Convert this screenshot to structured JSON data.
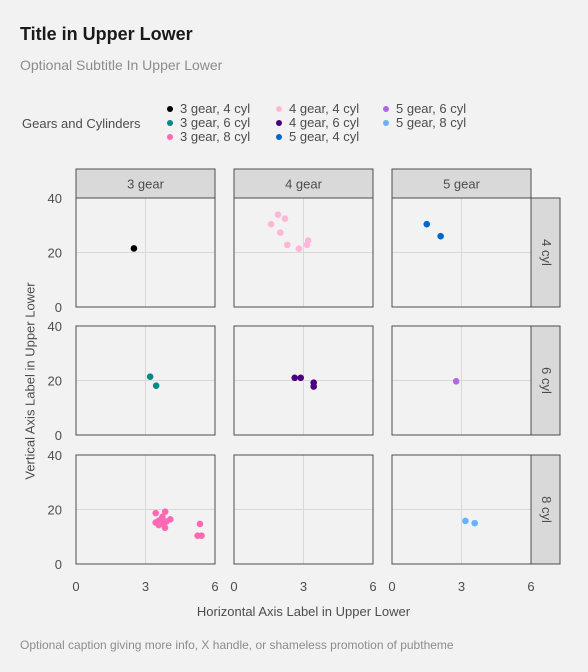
{
  "title": "Title in Upper Lower",
  "subtitle": "Optional Subtitle In Upper Lower",
  "caption": "Optional caption giving more info, X handle, or shameless promotion of pubtheme",
  "legend": {
    "title": "Gears and Cylinders",
    "items": [
      {
        "label": "3 gear, 4 cyl",
        "color": "#000000"
      },
      {
        "label": "3 gear, 6 cyl",
        "color": "#008b8b"
      },
      {
        "label": "3 gear, 8 cyl",
        "color": "#ff69b4"
      },
      {
        "label": "4 gear, 4 cyl",
        "color": "#ffb6d9"
      },
      {
        "label": "4 gear, 6 cyl",
        "color": "#4b0082"
      },
      {
        "label": "5 gear, 4 cyl",
        "color": "#0066cc"
      },
      {
        "label": "5 gear, 6 cyl",
        "color": "#b266e6"
      },
      {
        "label": "5 gear, 8 cyl",
        "color": "#66b2ff"
      }
    ]
  },
  "chart_data": {
    "type": "scatter",
    "xlabel": "Horizontal Axis Label in Upper Lower",
    "ylabel": "Vertical Axis Label in Upper Lower",
    "xlim": [
      0,
      6
    ],
    "ylim": [
      0,
      40
    ],
    "xticks": [
      0,
      3,
      6
    ],
    "yticks": [
      0,
      20,
      40
    ],
    "grid": true,
    "legend_position": "top",
    "facet_cols": [
      "3 gear",
      "4 gear",
      "5 gear"
    ],
    "facet_rows": [
      "4 cyl",
      "6 cyl",
      "8 cyl"
    ],
    "panels": [
      {
        "col": "3 gear",
        "row": "4 cyl",
        "series": "3 gear, 4 cyl",
        "points": [
          [
            2.5,
            21.5
          ]
        ]
      },
      {
        "col": "4 gear",
        "row": "4 cyl",
        "series": "4 gear, 4 cyl",
        "points": [
          [
            1.6,
            30.4
          ],
          [
            1.9,
            33.9
          ],
          [
            2.0,
            27.3
          ],
          [
            2.2,
            32.4
          ],
          [
            2.3,
            22.8
          ],
          [
            2.8,
            21.4
          ],
          [
            3.15,
            22.8
          ],
          [
            3.2,
            24.4
          ]
        ]
      },
      {
        "col": "5 gear",
        "row": "4 cyl",
        "series": "5 gear, 4 cyl",
        "points": [
          [
            1.5,
            30.4
          ],
          [
            2.1,
            26.0
          ]
        ]
      },
      {
        "col": "3 gear",
        "row": "6 cyl",
        "series": "3 gear, 6 cyl",
        "points": [
          [
            3.2,
            21.4
          ],
          [
            3.46,
            18.1
          ]
        ]
      },
      {
        "col": "4 gear",
        "row": "6 cyl",
        "series": "4 gear, 6 cyl",
        "points": [
          [
            2.62,
            21.0
          ],
          [
            2.88,
            21.0
          ],
          [
            3.44,
            19.2
          ],
          [
            3.44,
            17.8
          ]
        ]
      },
      {
        "col": "5 gear",
        "row": "6 cyl",
        "series": "5 gear, 6 cyl",
        "points": [
          [
            2.77,
            19.7
          ]
        ]
      },
      {
        "col": "3 gear",
        "row": "8 cyl",
        "series": "3 gear, 8 cyl",
        "points": [
          [
            3.44,
            18.7
          ],
          [
            3.57,
            14.3
          ],
          [
            4.07,
            16.4
          ],
          [
            3.73,
            17.3
          ],
          [
            3.78,
            15.2
          ],
          [
            5.25,
            10.4
          ],
          [
            5.42,
            10.4
          ],
          [
            5.35,
            14.7
          ],
          [
            3.52,
            15.5
          ],
          [
            3.44,
            15.2
          ],
          [
            3.84,
            13.3
          ],
          [
            3.85,
            19.2
          ],
          [
            3.6,
            16.0
          ],
          [
            3.65,
            14.8
          ],
          [
            3.9,
            15.6
          ]
        ]
      },
      {
        "col": "5 gear",
        "row": "8 cyl",
        "series": "5 gear, 8 cyl",
        "points": [
          [
            3.17,
            15.8
          ],
          [
            3.57,
            15.0
          ]
        ]
      }
    ]
  }
}
